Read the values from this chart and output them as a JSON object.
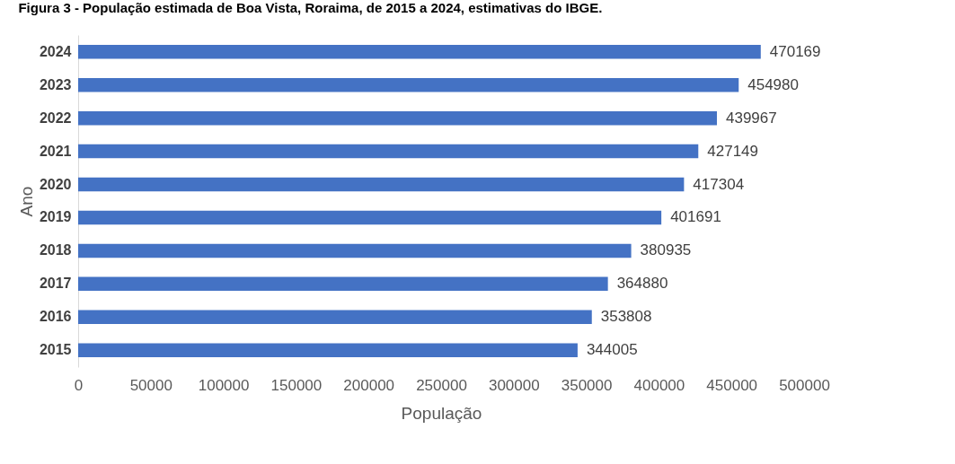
{
  "chart_data": {
    "type": "bar",
    "orientation": "horizontal",
    "title": "Figura 3 - População estimada de Boa Vista, Roraima, de 2015 a 2024, estimativas do IBGE.",
    "xlabel": "População",
    "ylabel": "Ano",
    "categories": [
      "2024",
      "2023",
      "2022",
      "2021",
      "2020",
      "2019",
      "2018",
      "2017",
      "2016",
      "2015"
    ],
    "values": [
      470169,
      454980,
      439967,
      427149,
      417304,
      401691,
      380935,
      364880,
      353808,
      344005
    ],
    "color": "#4472c4",
    "xlim": [
      0,
      500000
    ],
    "xticks": [
      0,
      50000,
      100000,
      150000,
      200000,
      250000,
      300000,
      350000,
      400000,
      450000,
      500000
    ],
    "grid": false,
    "data_labels": true
  }
}
